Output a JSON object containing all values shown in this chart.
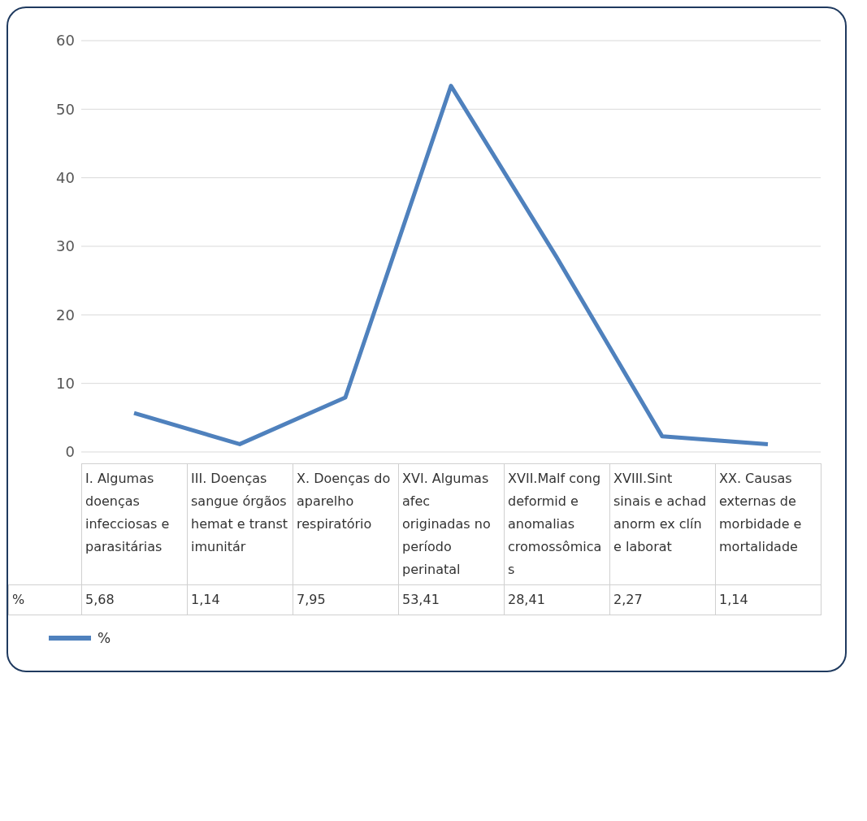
{
  "chart_data": {
    "type": "line",
    "categories": [
      "I. Algumas doenças infecciosas e parasitárias",
      "III. Doenças sangue órgãos hemat e transt imunitár",
      "X. Doenças do aparelho respiratório",
      "XVI. Algumas afec originadas no período perinatal",
      "XVII.Malf cong deformid e anomalias cromossômicas",
      "XVIII.Sint sinais e achad anorm ex clín e laborat",
      "XX. Causas externas de morbidade e mortalidade"
    ],
    "series": [
      {
        "name": "%",
        "color": "#4f81bd",
        "values": [
          5.68,
          1.14,
          7.95,
          53.41,
          28.41,
          2.27,
          1.14
        ],
        "value_labels": [
          "5,68",
          "1,14",
          "7,95",
          "53,41",
          "28,41",
          "2,27",
          "1,14"
        ]
      }
    ],
    "ylim": [
      0,
      60
    ],
    "yticks": [
      0,
      10,
      20,
      30,
      40,
      50,
      60
    ],
    "grid": "y",
    "legend": "bottom",
    "marker": "none",
    "line_style": "solid"
  }
}
